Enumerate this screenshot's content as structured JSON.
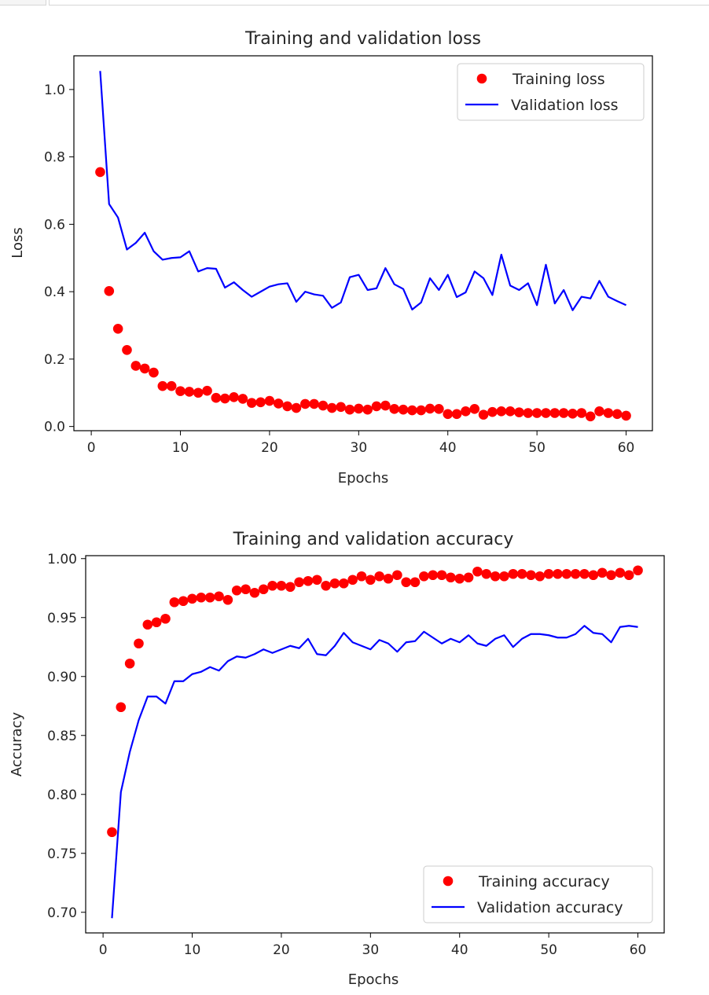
{
  "chart_data": [
    {
      "type": "scatter+line",
      "title": "Training and validation loss",
      "xlabel": "Epochs",
      "ylabel": "Loss",
      "xlim": [
        -1.95,
        62.95
      ],
      "ylim": [
        -0.0125,
        1.1
      ],
      "xticks": [
        0,
        10,
        20,
        30,
        40,
        50,
        60
      ],
      "yticks": [
        0.0,
        0.2,
        0.4,
        0.6,
        0.8,
        1.0
      ],
      "ytick_labels": [
        "0.0",
        "0.2",
        "0.4",
        "0.6",
        "0.8",
        "1.0"
      ],
      "legend_position": "upper right",
      "series": [
        {
          "name": "Training loss",
          "style": "dots",
          "color": "#ff0000",
          "x": [
            1,
            2,
            3,
            4,
            5,
            6,
            7,
            8,
            9,
            10,
            11,
            12,
            13,
            14,
            15,
            16,
            17,
            18,
            19,
            20,
            21,
            22,
            23,
            24,
            25,
            26,
            27,
            28,
            29,
            30,
            31,
            32,
            33,
            34,
            35,
            36,
            37,
            38,
            39,
            40,
            41,
            42,
            43,
            44,
            45,
            46,
            47,
            48,
            49,
            50,
            51,
            52,
            53,
            54,
            55,
            56,
            57,
            58,
            59,
            60
          ],
          "y": [
            0.755,
            0.402,
            0.29,
            0.227,
            0.18,
            0.172,
            0.16,
            0.12,
            0.12,
            0.105,
            0.103,
            0.1,
            0.106,
            0.085,
            0.083,
            0.087,
            0.082,
            0.07,
            0.072,
            0.076,
            0.068,
            0.06,
            0.055,
            0.067,
            0.067,
            0.062,
            0.055,
            0.058,
            0.05,
            0.053,
            0.05,
            0.06,
            0.062,
            0.052,
            0.05,
            0.048,
            0.048,
            0.053,
            0.052,
            0.037,
            0.037,
            0.045,
            0.052,
            0.035,
            0.043,
            0.045,
            0.045,
            0.042,
            0.04,
            0.04,
            0.04,
            0.04,
            0.04,
            0.038,
            0.04,
            0.03,
            0.045,
            0.04,
            0.037,
            0.032
          ]
        },
        {
          "name": "Validation loss",
          "style": "line",
          "color": "#0000ff",
          "x": [
            1,
            2,
            3,
            4,
            5,
            6,
            7,
            8,
            9,
            10,
            11,
            12,
            13,
            14,
            15,
            16,
            17,
            18,
            19,
            20,
            21,
            22,
            23,
            24,
            25,
            26,
            27,
            28,
            29,
            30,
            31,
            32,
            33,
            34,
            35,
            36,
            37,
            38,
            39,
            40,
            41,
            42,
            43,
            44,
            45,
            46,
            47,
            48,
            49,
            50,
            51,
            52,
            53,
            54,
            55,
            56,
            57,
            58,
            59,
            60
          ],
          "y": [
            1.055,
            0.66,
            0.62,
            0.525,
            0.545,
            0.575,
            0.52,
            0.495,
            0.5,
            0.502,
            0.52,
            0.46,
            0.47,
            0.468,
            0.412,
            0.428,
            0.405,
            0.385,
            0.4,
            0.415,
            0.422,
            0.425,
            0.37,
            0.4,
            0.392,
            0.388,
            0.352,
            0.368,
            0.443,
            0.45,
            0.405,
            0.41,
            0.47,
            0.422,
            0.408,
            0.347,
            0.368,
            0.44,
            0.405,
            0.45,
            0.384,
            0.398,
            0.46,
            0.44,
            0.39,
            0.51,
            0.418,
            0.405,
            0.425,
            0.36,
            0.48,
            0.365,
            0.405,
            0.345,
            0.385,
            0.38,
            0.432,
            0.385,
            0.372,
            0.36
          ]
        }
      ]
    },
    {
      "type": "scatter+line",
      "title": "Training and validation accuracy",
      "xlabel": "Epochs",
      "ylabel": "Accuracy",
      "xlim": [
        -1.95,
        62.95
      ],
      "ylim": [
        0.6825,
        1.0025
      ],
      "xticks": [
        0,
        10,
        20,
        30,
        40,
        50,
        60
      ],
      "yticks": [
        0.7,
        0.75,
        0.8,
        0.85,
        0.9,
        0.95,
        1.0
      ],
      "ytick_labels": [
        "0.70",
        "0.75",
        "0.80",
        "0.85",
        "0.90",
        "0.95",
        "1.00"
      ],
      "legend_position": "lower right",
      "series": [
        {
          "name": "Training accuracy",
          "style": "dots",
          "color": "#ff0000",
          "x": [
            1,
            2,
            3,
            4,
            5,
            6,
            7,
            8,
            9,
            10,
            11,
            12,
            13,
            14,
            15,
            16,
            17,
            18,
            19,
            20,
            21,
            22,
            23,
            24,
            25,
            26,
            27,
            28,
            29,
            30,
            31,
            32,
            33,
            34,
            35,
            36,
            37,
            38,
            39,
            40,
            41,
            42,
            43,
            44,
            45,
            46,
            47,
            48,
            49,
            50,
            51,
            52,
            53,
            54,
            55,
            56,
            57,
            58,
            59,
            60
          ],
          "y": [
            0.768,
            0.874,
            0.911,
            0.928,
            0.944,
            0.946,
            0.949,
            0.963,
            0.964,
            0.966,
            0.967,
            0.967,
            0.968,
            0.965,
            0.973,
            0.974,
            0.971,
            0.974,
            0.977,
            0.977,
            0.976,
            0.98,
            0.981,
            0.982,
            0.977,
            0.979,
            0.979,
            0.982,
            0.985,
            0.982,
            0.985,
            0.983,
            0.986,
            0.98,
            0.98,
            0.985,
            0.986,
            0.986,
            0.984,
            0.983,
            0.984,
            0.989,
            0.987,
            0.985,
            0.985,
            0.987,
            0.987,
            0.986,
            0.985,
            0.987,
            0.987,
            0.987,
            0.987,
            0.987,
            0.986,
            0.988,
            0.986,
            0.988,
            0.986,
            0.99
          ]
        },
        {
          "name": "Validation accuracy",
          "style": "line",
          "color": "#0000ff",
          "x": [
            1,
            2,
            3,
            4,
            5,
            6,
            7,
            8,
            9,
            10,
            11,
            12,
            13,
            14,
            15,
            16,
            17,
            18,
            19,
            20,
            21,
            22,
            23,
            24,
            25,
            26,
            27,
            28,
            29,
            30,
            31,
            32,
            33,
            34,
            35,
            36,
            37,
            38,
            39,
            40,
            41,
            42,
            43,
            44,
            45,
            46,
            47,
            48,
            49,
            50,
            51,
            52,
            53,
            54,
            55,
            56,
            57,
            58,
            59,
            60
          ],
          "y": [
            0.695,
            0.802,
            0.836,
            0.863,
            0.883,
            0.883,
            0.877,
            0.896,
            0.896,
            0.902,
            0.904,
            0.908,
            0.905,
            0.913,
            0.917,
            0.916,
            0.919,
            0.923,
            0.92,
            0.923,
            0.926,
            0.924,
            0.932,
            0.919,
            0.918,
            0.926,
            0.937,
            0.929,
            0.926,
            0.923,
            0.931,
            0.928,
            0.921,
            0.929,
            0.93,
            0.938,
            0.933,
            0.928,
            0.932,
            0.929,
            0.935,
            0.928,
            0.926,
            0.932,
            0.935,
            0.925,
            0.932,
            0.936,
            0.936,
            0.935,
            0.933,
            0.933,
            0.936,
            0.943,
            0.937,
            0.936,
            0.929,
            0.942,
            0.943,
            0.942
          ]
        }
      ]
    }
  ]
}
